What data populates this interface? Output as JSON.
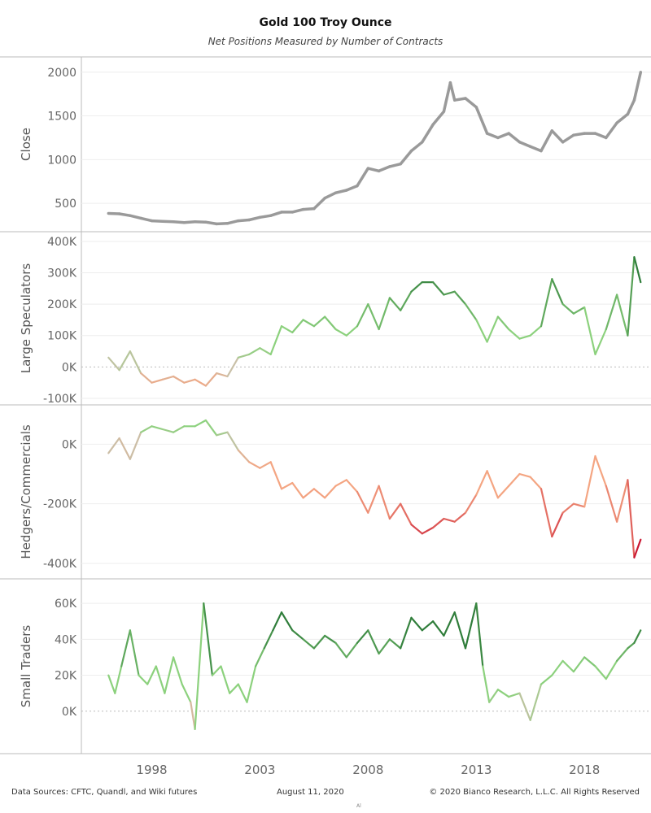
{
  "title": "Gold 100 Troy Ounce",
  "subtitle": "Net Positions Measured by Number of Contracts",
  "footer": {
    "left": "Data Sources: CFTC, Quandl, and Wiki futures",
    "middle": "August 11, 2020",
    "right": "© 2020 Bianco Research, L.L.C. All Rights Reserved",
    "mark": "Al"
  },
  "colors": {
    "close_line": "#9a9a9a",
    "green": "#2f7d3a",
    "light_green": "#8cd17d",
    "neutral": "#c9c0a8",
    "salmon": "#f4a582",
    "red": "#c8102e",
    "zero_line": "#bbbbbb"
  },
  "chart_data": {
    "type": "line",
    "x_axis": {
      "ticks": [
        "1998",
        "2003",
        "2008",
        "2013",
        "2018"
      ],
      "range": [
        1995.5,
        2020.7
      ]
    },
    "panels": [
      {
        "id": "close",
        "ylabel": "Close",
        "ylim": [
          250,
          2100
        ],
        "ticks": [
          500,
          1000,
          1500,
          2000
        ],
        "tick_labels": [
          "500",
          "1000",
          "1500",
          "2000"
        ],
        "zero_line": false,
        "color_mode": "gray",
        "x": [
          1996.0,
          1996.5,
          1997.0,
          1997.5,
          1998.0,
          1998.5,
          1999.0,
          1999.5,
          2000.0,
          2000.5,
          2001.0,
          2001.5,
          2002.0,
          2002.5,
          2003.0,
          2003.5,
          2004.0,
          2004.5,
          2005.0,
          2005.5,
          2006.0,
          2006.5,
          2007.0,
          2007.5,
          2008.0,
          2008.5,
          2009.0,
          2009.5,
          2010.0,
          2010.5,
          2011.0,
          2011.5,
          2011.8,
          2012.0,
          2012.5,
          2013.0,
          2013.5,
          2014.0,
          2014.5,
          2015.0,
          2015.5,
          2016.0,
          2016.5,
          2017.0,
          2017.5,
          2018.0,
          2018.5,
          2019.0,
          2019.5,
          2020.0,
          2020.3,
          2020.6
        ],
        "values": [
          385,
          380,
          360,
          330,
          300,
          295,
          290,
          280,
          290,
          285,
          265,
          270,
          300,
          310,
          340,
          360,
          400,
          400,
          430,
          440,
          560,
          620,
          650,
          700,
          900,
          870,
          920,
          950,
          1100,
          1200,
          1400,
          1550,
          1880,
          1680,
          1700,
          1600,
          1300,
          1250,
          1300,
          1200,
          1150,
          1100,
          1330,
          1200,
          1280,
          1300,
          1300,
          1250,
          1420,
          1520,
          1680,
          2000
        ]
      },
      {
        "id": "large_speculators",
        "ylabel": "Large Speculators",
        "ylim": [
          -100000,
          410000
        ],
        "ticks": [
          -100000,
          0,
          100000,
          200000,
          300000,
          400000
        ],
        "tick_labels": [
          "-100K",
          "0K",
          "100K",
          "200K",
          "300K",
          "400K"
        ],
        "zero_line": true,
        "color_mode": "spec",
        "x": [
          1996.0,
          1996.5,
          1997.0,
          1997.5,
          1998.0,
          1998.5,
          1999.0,
          1999.5,
          2000.0,
          2000.5,
          2001.0,
          2001.5,
          2002.0,
          2002.5,
          2003.0,
          2003.5,
          2004.0,
          2004.5,
          2005.0,
          2005.5,
          2006.0,
          2006.5,
          2007.0,
          2007.5,
          2008.0,
          2008.5,
          2009.0,
          2009.5,
          2010.0,
          2010.5,
          2011.0,
          2011.5,
          2012.0,
          2012.5,
          2013.0,
          2013.5,
          2014.0,
          2014.5,
          2015.0,
          2015.5,
          2016.0,
          2016.5,
          2017.0,
          2017.5,
          2018.0,
          2018.5,
          2019.0,
          2019.5,
          2020.0,
          2020.3,
          2020.6
        ],
        "values": [
          30000,
          -10000,
          50000,
          -20000,
          -50000,
          -40000,
          -30000,
          -50000,
          -40000,
          -60000,
          -20000,
          -30000,
          30000,
          40000,
          60000,
          40000,
          130000,
          110000,
          150000,
          130000,
          160000,
          120000,
          100000,
          130000,
          200000,
          120000,
          220000,
          180000,
          240000,
          270000,
          270000,
          230000,
          240000,
          200000,
          150000,
          80000,
          160000,
          120000,
          90000,
          100000,
          130000,
          280000,
          200000,
          170000,
          190000,
          40000,
          120000,
          230000,
          100000,
          350000,
          270000
        ]
      },
      {
        "id": "hedgers_commercials",
        "ylabel": "Hedgers/Commercials",
        "ylim": [
          -430000,
          110000
        ],
        "ticks": [
          -400000,
          -200000,
          0
        ],
        "tick_labels": [
          "-400K",
          "-200K",
          "0K"
        ],
        "zero_line": false,
        "color_mode": "hedge",
        "x": [
          1996.0,
          1996.5,
          1997.0,
          1997.5,
          1998.0,
          1998.5,
          1999.0,
          1999.5,
          2000.0,
          2000.5,
          2001.0,
          2001.5,
          2002.0,
          2002.5,
          2003.0,
          2003.5,
          2004.0,
          2004.5,
          2005.0,
          2005.5,
          2006.0,
          2006.5,
          2007.0,
          2007.5,
          2008.0,
          2008.5,
          2009.0,
          2009.5,
          2010.0,
          2010.5,
          2011.0,
          2011.5,
          2012.0,
          2012.5,
          2013.0,
          2013.5,
          2014.0,
          2014.5,
          2015.0,
          2015.5,
          2016.0,
          2016.5,
          2017.0,
          2017.5,
          2018.0,
          2018.5,
          2019.0,
          2019.5,
          2020.0,
          2020.3,
          2020.6
        ],
        "values": [
          -30000,
          20000,
          -50000,
          40000,
          60000,
          50000,
          40000,
          60000,
          60000,
          80000,
          30000,
          40000,
          -20000,
          -60000,
          -80000,
          -60000,
          -150000,
          -130000,
          -180000,
          -150000,
          -180000,
          -140000,
          -120000,
          -160000,
          -230000,
          -140000,
          -250000,
          -200000,
          -270000,
          -300000,
          -280000,
          -250000,
          -260000,
          -230000,
          -170000,
          -90000,
          -180000,
          -140000,
          -100000,
          -110000,
          -150000,
          -310000,
          -230000,
          -200000,
          -210000,
          -40000,
          -140000,
          -260000,
          -120000,
          -380000,
          -320000
        ]
      },
      {
        "id": "small_traders",
        "ylabel": "Small Traders",
        "ylim": [
          -20000,
          70000
        ],
        "ticks": [
          0,
          20000,
          40000,
          60000
        ],
        "tick_labels": [
          "0K",
          "20K",
          "40K",
          "60K"
        ],
        "zero_line": true,
        "color_mode": "small",
        "x": [
          1996.0,
          1996.3,
          1996.6,
          1997.0,
          1997.4,
          1997.8,
          1998.2,
          1998.6,
          1999.0,
          1999.4,
          1999.8,
          2000.0,
          2000.4,
          2000.8,
          2001.2,
          2001.6,
          2002.0,
          2002.4,
          2002.8,
          2003.2,
          2003.6,
          2004.0,
          2004.5,
          2005.0,
          2005.5,
          2006.0,
          2006.5,
          2007.0,
          2007.5,
          2008.0,
          2008.5,
          2009.0,
          2009.5,
          2010.0,
          2010.5,
          2011.0,
          2011.5,
          2012.0,
          2012.5,
          2013.0,
          2013.3,
          2013.6,
          2014.0,
          2014.5,
          2015.0,
          2015.5,
          2016.0,
          2016.5,
          2017.0,
          2017.5,
          2018.0,
          2018.5,
          2019.0,
          2019.5,
          2020.0,
          2020.3,
          2020.6
        ],
        "values": [
          20000,
          10000,
          25000,
          45000,
          20000,
          15000,
          25000,
          10000,
          30000,
          15000,
          5000,
          -10000,
          60000,
          20000,
          25000,
          10000,
          15000,
          5000,
          25000,
          35000,
          45000,
          55000,
          45000,
          40000,
          35000,
          42000,
          38000,
          30000,
          38000,
          45000,
          32000,
          40000,
          35000,
          52000,
          45000,
          50000,
          42000,
          55000,
          35000,
          60000,
          25000,
          5000,
          12000,
          8000,
          10000,
          -5000,
          15000,
          20000,
          28000,
          22000,
          30000,
          25000,
          18000,
          28000,
          35000,
          38000,
          45000
        ]
      }
    ]
  }
}
